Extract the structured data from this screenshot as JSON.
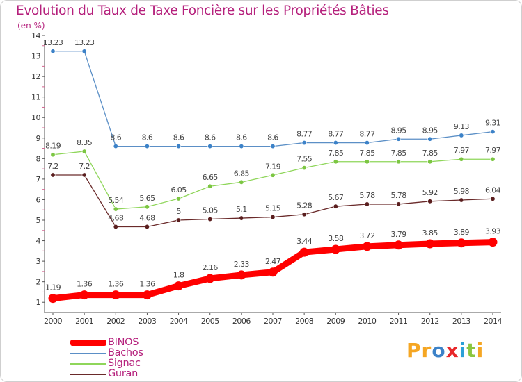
{
  "chart_data": {
    "type": "line",
    "title": "Evolution du Taux de Taxe Foncière sur les Propriétés Bâties",
    "ylabel": "(en %)",
    "xlabel": "",
    "categories": [
      "2000",
      "2001",
      "2002",
      "2003",
      "2004",
      "2005",
      "2006",
      "2007",
      "2008",
      "2009",
      "2010",
      "2011",
      "2012",
      "2013",
      "2014"
    ],
    "ylim": [
      0.5,
      14
    ],
    "yticks": [
      "1",
      "2",
      "3",
      "4",
      "5",
      "6",
      "7",
      "8",
      "9",
      "10",
      "11",
      "12",
      "13",
      "14"
    ],
    "series": [
      {
        "name": "Bachos",
        "color": "#5b8fc6",
        "marker": "#3c82c8",
        "values": [
          13.23,
          13.23,
          8.6,
          8.6,
          8.6,
          8.6,
          8.6,
          8.6,
          8.77,
          8.77,
          8.77,
          8.95,
          8.95,
          9.13,
          9.31
        ],
        "labels": [
          "13.23",
          "13.23",
          "8.6",
          "8.6",
          "8.6",
          "8.6",
          "8.6",
          "8.6",
          "8.77",
          "8.77",
          "8.77",
          "8.95",
          "8.95",
          "9.13",
          "9.31"
        ]
      },
      {
        "name": "Signac",
        "color": "#8fd65a",
        "marker": "#7cc642",
        "values": [
          8.19,
          8.35,
          5.54,
          5.65,
          6.05,
          6.65,
          6.85,
          7.19,
          7.55,
          7.85,
          7.85,
          7.85,
          7.85,
          7.97,
          7.97
        ],
        "labels": [
          "8.19",
          "8.35",
          "5.54",
          "5.65",
          "6.05",
          "6.65",
          "6.85",
          "7.19",
          "7.55",
          "7.85",
          "7.85",
          "7.85",
          "7.85",
          "7.97",
          "7.97"
        ]
      },
      {
        "name": "Guran",
        "color": "#6a2a2a",
        "marker": "#5a1e1e",
        "values": [
          7.2,
          7.2,
          4.68,
          4.68,
          5,
          5.05,
          5.1,
          5.15,
          5.28,
          5.67,
          5.78,
          5.78,
          5.92,
          5.98,
          6.04
        ],
        "labels": [
          "7.2",
          "7.2",
          "4.68",
          "4.68",
          "5",
          "5.05",
          "5.1",
          "5.15",
          "5.28",
          "5.67",
          "5.78",
          "5.78",
          "5.92",
          "5.98",
          "6.04"
        ]
      },
      {
        "name": "BINOS",
        "color": "#ff0000",
        "marker": "#ff0000",
        "emphasis": true,
        "values": [
          1.19,
          1.36,
          1.36,
          1.36,
          1.8,
          2.16,
          2.33,
          2.47,
          3.44,
          3.58,
          3.72,
          3.79,
          3.85,
          3.89,
          3.93
        ],
        "labels": [
          "1.19",
          "1.36",
          "1.36",
          "1.36",
          "1.8",
          "2.16",
          "2.33",
          "2.47",
          "3.44",
          "3.58",
          "3.72",
          "3.79",
          "3.85",
          "3.89",
          "3.93"
        ]
      }
    ]
  },
  "legend": {
    "items": [
      {
        "label": "BINOS",
        "color": "#ff0000"
      },
      {
        "label": "Bachos",
        "color": "#5b8fc6"
      },
      {
        "label": "Signac",
        "color": "#8fd65a"
      },
      {
        "label": "Guran",
        "color": "#6a2a2a"
      }
    ]
  },
  "brand": {
    "parts": [
      {
        "text": "Pr",
        "color": "#f5a623"
      },
      {
        "text": "o",
        "color": "#3c82c8"
      },
      {
        "text": "x",
        "color": "#e8272a"
      },
      {
        "text": "i",
        "color": "#2ba0d8"
      },
      {
        "text": "t",
        "color": "#8cc63f"
      },
      {
        "text": "i",
        "color": "#f5a623"
      }
    ]
  }
}
